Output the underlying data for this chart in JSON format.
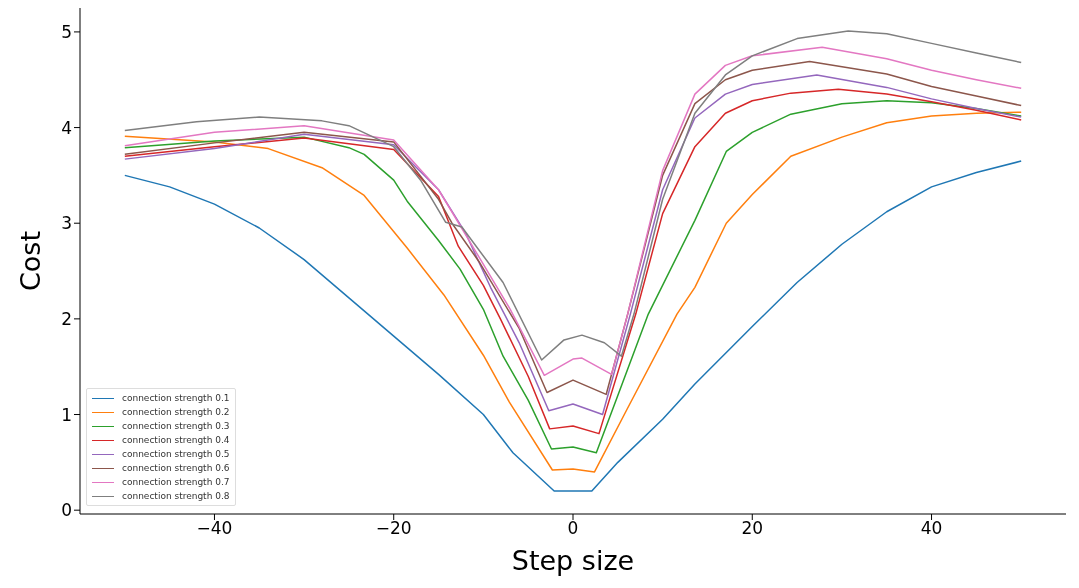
{
  "chart_data": {
    "type": "line",
    "xlabel": "Step size",
    "ylabel": "Cost",
    "xlim": [
      -55,
      55
    ],
    "ylim": [
      -0.04,
      5.25
    ],
    "xticks": [
      {
        "value": -40,
        "label": "−40"
      },
      {
        "value": -20,
        "label": "−20"
      },
      0,
      20,
      40
    ],
    "yticks": [
      0,
      1,
      2,
      3,
      4,
      5
    ],
    "legend": "bottom left",
    "series": [
      {
        "name": "connection strength 0.1",
        "color": "#1f77b4",
        "x": [
          -50,
          -45,
          -40,
          -35,
          -30,
          -25,
          -20,
          -15,
          -10,
          -6.7,
          -2.1,
          0,
          2.1,
          5,
          10,
          13.6,
          20,
          25,
          30,
          35,
          40,
          45,
          50
        ],
        "values": [
          3.5,
          3.38,
          3.2,
          2.95,
          2.62,
          2.22,
          1.82,
          1.42,
          1.0,
          0.6,
          0.2,
          0.2,
          0.2,
          0.5,
          0.95,
          1.32,
          1.92,
          2.38,
          2.78,
          3.12,
          3.38,
          3.53,
          3.65
        ]
      },
      {
        "name": "connection strength 0.2",
        "color": "#ff7f0e",
        "x": [
          -50,
          -40,
          -34,
          -28,
          -23.3,
          -18.5,
          -14.4,
          -10,
          -7.1,
          -2.3,
          0,
          2.4,
          6,
          11.6,
          13.6,
          17.1,
          20,
          24.3,
          30,
          35,
          40,
          45,
          50
        ],
        "values": [
          3.91,
          3.85,
          3.78,
          3.58,
          3.29,
          2.74,
          2.25,
          1.62,
          1.13,
          0.42,
          0.43,
          0.4,
          1.05,
          2.05,
          2.33,
          3.0,
          3.3,
          3.7,
          3.9,
          4.05,
          4.12,
          4.15,
          4.16
        ]
      },
      {
        "name": "connection strength 0.3",
        "color": "#2ca02c",
        "x": [
          -50,
          -40,
          -30,
          -25,
          -23.3,
          -20,
          -18.5,
          -15,
          -12.6,
          -10,
          -7.8,
          -5,
          -2.4,
          0,
          2.6,
          5,
          8.4,
          13.6,
          17.1,
          20,
          24.3,
          30,
          35,
          40,
          45,
          50
        ],
        "values": [
          3.79,
          3.86,
          3.9,
          3.79,
          3.72,
          3.45,
          3.23,
          2.82,
          2.52,
          2.1,
          1.61,
          1.15,
          0.64,
          0.66,
          0.6,
          1.2,
          2.05,
          3.03,
          3.75,
          3.95,
          4.14,
          4.25,
          4.28,
          4.26,
          4.2,
          4.12
        ]
      },
      {
        "name": "connection strength 0.4",
        "color": "#d62728",
        "x": [
          -50,
          -40,
          -30,
          -20,
          -15,
          -12.8,
          -10,
          -8.1,
          -5,
          -2.6,
          0,
          2.9,
          7,
          10,
          13.6,
          17,
          20,
          24.3,
          29.6,
          35,
          40,
          45,
          50
        ],
        "values": [
          3.7,
          3.8,
          3.89,
          3.77,
          3.28,
          2.76,
          2.35,
          2.0,
          1.4,
          0.85,
          0.88,
          0.8,
          2.05,
          3.1,
          3.8,
          4.15,
          4.28,
          4.36,
          4.4,
          4.35,
          4.27,
          4.18,
          4.08
        ]
      },
      {
        "name": "connection strength 0.5",
        "color": "#9467bd",
        "x": [
          -50,
          -40,
          -30,
          -20,
          -15,
          -12,
          -9.2,
          -6,
          -2.7,
          0,
          3.3,
          6.4,
          10,
          13.6,
          17,
          20,
          27.2,
          35,
          40,
          45,
          50
        ],
        "values": [
          3.67,
          3.78,
          3.93,
          3.82,
          3.35,
          2.9,
          2.33,
          1.75,
          1.04,
          1.11,
          1.0,
          2.05,
          3.35,
          4.1,
          4.35,
          4.45,
          4.55,
          4.42,
          4.3,
          4.2,
          4.11
        ]
      },
      {
        "name": "connection strength 0.6",
        "color": "#8c564b",
        "x": [
          -50,
          -40,
          -30,
          -20,
          -15,
          -13.5,
          -10.5,
          -6,
          -2.9,
          0,
          3.7,
          6.1,
          10,
          13.6,
          17,
          20,
          26.4,
          35,
          40,
          45,
          50
        ],
        "values": [
          3.72,
          3.84,
          3.95,
          3.85,
          3.25,
          3.0,
          2.6,
          1.9,
          1.23,
          1.36,
          1.21,
          2.05,
          3.5,
          4.25,
          4.5,
          4.6,
          4.69,
          4.56,
          4.43,
          4.33,
          4.23
        ]
      },
      {
        "name": "connection strength 0.7",
        "color": "#e377c2",
        "x": [
          -50,
          -40,
          -30,
          -20,
          -15,
          -11.4,
          -7,
          -3.2,
          0,
          1,
          4.3,
          6.1,
          10,
          13.6,
          17,
          20,
          27.8,
          35,
          40,
          45,
          50
        ],
        "values": [
          3.81,
          3.95,
          4.02,
          3.87,
          3.35,
          2.79,
          2.1,
          1.41,
          1.58,
          1.59,
          1.42,
          2.05,
          3.55,
          4.35,
          4.65,
          4.75,
          4.84,
          4.72,
          4.6,
          4.5,
          4.41
        ]
      },
      {
        "name": "connection strength 0.8",
        "color": "#7f7f7f",
        "x": [
          -50,
          -42,
          -35,
          -28,
          -25,
          -20,
          -17,
          -14.2,
          -12.4,
          -7.8,
          -3.5,
          -1,
          1,
          3.5,
          5.4,
          6.8,
          10,
          13.6,
          17,
          20,
          25,
          30.7,
          35,
          40,
          45,
          50
        ],
        "values": [
          3.97,
          4.06,
          4.11,
          4.07,
          4.02,
          3.8,
          3.45,
          3.01,
          2.96,
          2.38,
          1.57,
          1.78,
          1.83,
          1.75,
          1.61,
          2.05,
          3.25,
          4.15,
          4.55,
          4.75,
          4.93,
          5.01,
          4.98,
          4.88,
          4.78,
          4.68
        ]
      }
    ]
  }
}
